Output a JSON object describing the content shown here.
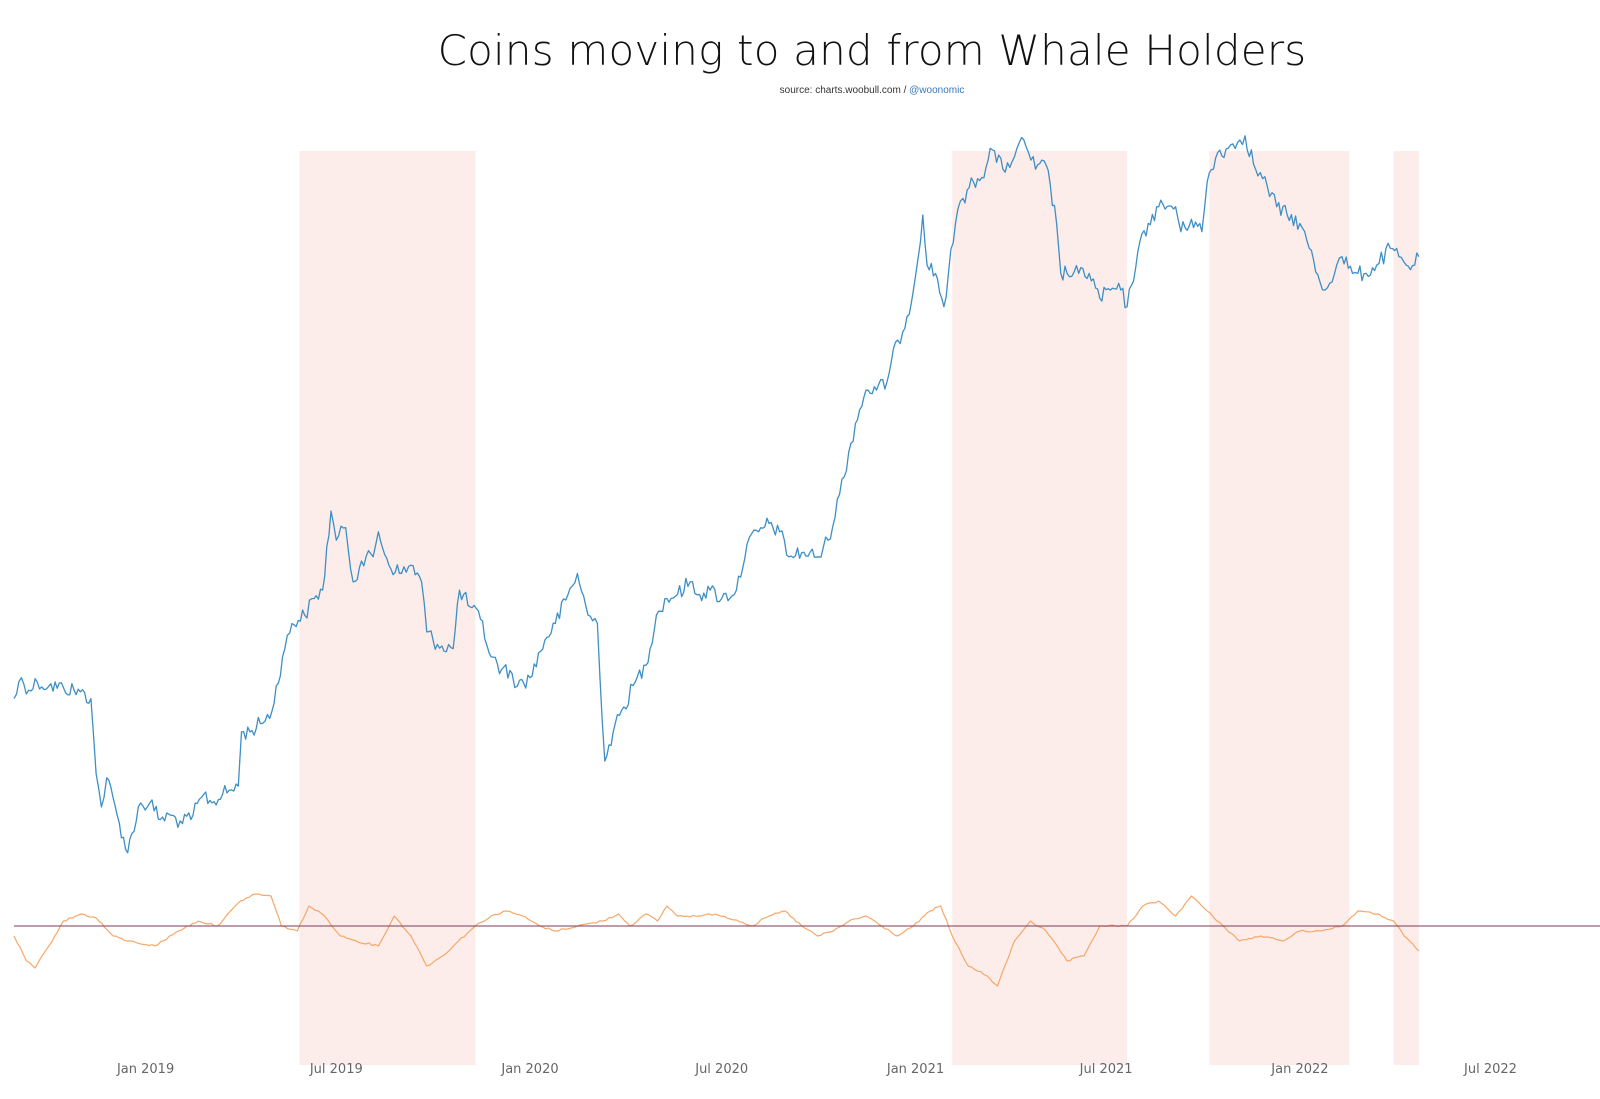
{
  "chart_data": {
    "type": "line",
    "title": "Coins moving to and from Whale Holders",
    "subtitle": {
      "source_prefix": "source: charts.woobull.com /",
      "handle": "@woonomic"
    },
    "x_range": [
      "2018-08-29",
      "2022-10-13"
    ],
    "x_ticks": [
      {
        "date": "2019-01-01",
        "label": "Jan 2019"
      },
      {
        "date": "2019-07-01",
        "label": "Jul 2019"
      },
      {
        "date": "2020-01-01",
        "label": "Jan 2020"
      },
      {
        "date": "2020-07-01",
        "label": "Jul 2020"
      },
      {
        "date": "2021-01-01",
        "label": "Jan 2021"
      },
      {
        "date": "2021-07-01",
        "label": "Jul 2021"
      },
      {
        "date": "2022-01-01",
        "label": "Jan 2022"
      },
      {
        "date": "2022-07-01",
        "label": "Jul 2022"
      }
    ],
    "grid": false,
    "shaded_periods": [
      {
        "start": "2019-05-27",
        "end": "2019-11-10"
      },
      {
        "start": "2021-02-05",
        "end": "2021-07-21"
      },
      {
        "start": "2021-10-07",
        "end": "2022-02-17"
      },
      {
        "start": "2022-03-31",
        "end": "2022-04-24"
      }
    ],
    "shade_color": "#fcecea",
    "series": [
      {
        "role": "price",
        "color": "#3d8fc4",
        "y_range": [
          0.08,
          1.0
        ],
        "points": [
          [
            "2018-08-29",
            0.33
          ],
          [
            "2018-09-05",
            0.355
          ],
          [
            "2018-09-12",
            0.34
          ],
          [
            "2018-09-20",
            0.35
          ],
          [
            "2018-10-01",
            0.345
          ],
          [
            "2018-10-15",
            0.343
          ],
          [
            "2018-10-31",
            0.338
          ],
          [
            "2018-11-10",
            0.33
          ],
          [
            "2018-11-15",
            0.24
          ],
          [
            "2018-11-20",
            0.2
          ],
          [
            "2018-11-25",
            0.235
          ],
          [
            "2018-12-05",
            0.19
          ],
          [
            "2018-12-15",
            0.145
          ],
          [
            "2018-12-25",
            0.2
          ],
          [
            "2019-01-05",
            0.205
          ],
          [
            "2019-01-15",
            0.185
          ],
          [
            "2019-01-25",
            0.19
          ],
          [
            "2019-02-05",
            0.18
          ],
          [
            "2019-02-15",
            0.19
          ],
          [
            "2019-02-25",
            0.215
          ],
          [
            "2019-03-05",
            0.205
          ],
          [
            "2019-03-15",
            0.215
          ],
          [
            "2019-03-30",
            0.225
          ],
          [
            "2019-04-02",
            0.29
          ],
          [
            "2019-04-10",
            0.29
          ],
          [
            "2019-04-20",
            0.3
          ],
          [
            "2019-05-01",
            0.315
          ],
          [
            "2019-05-11",
            0.38
          ],
          [
            "2019-05-20",
            0.42
          ],
          [
            "2019-06-01",
            0.43
          ],
          [
            "2019-06-10",
            0.45
          ],
          [
            "2019-06-18",
            0.46
          ],
          [
            "2019-06-26",
            0.555
          ],
          [
            "2019-07-01",
            0.52
          ],
          [
            "2019-07-10",
            0.535
          ],
          [
            "2019-07-17",
            0.47
          ],
          [
            "2019-07-25",
            0.495
          ],
          [
            "2019-08-05",
            0.5
          ],
          [
            "2019-08-10",
            0.53
          ],
          [
            "2019-08-20",
            0.49
          ],
          [
            "2019-09-01",
            0.48
          ],
          [
            "2019-09-10",
            0.49
          ],
          [
            "2019-09-20",
            0.47
          ],
          [
            "2019-09-25",
            0.41
          ],
          [
            "2019-10-05",
            0.395
          ],
          [
            "2019-10-20",
            0.39
          ],
          [
            "2019-10-26",
            0.46
          ],
          [
            "2019-11-05",
            0.44
          ],
          [
            "2019-11-15",
            0.425
          ],
          [
            "2019-11-25",
            0.38
          ],
          [
            "2019-12-05",
            0.365
          ],
          [
            "2019-12-15",
            0.36
          ],
          [
            "2019-12-20",
            0.345
          ],
          [
            "2020-01-01",
            0.355
          ],
          [
            "2020-01-15",
            0.4
          ],
          [
            "2020-01-25",
            0.42
          ],
          [
            "2020-02-10",
            0.465
          ],
          [
            "2020-02-15",
            0.48
          ],
          [
            "2020-02-25",
            0.43
          ],
          [
            "2020-03-05",
            0.42
          ],
          [
            "2020-03-12",
            0.255
          ],
          [
            "2020-03-20",
            0.29
          ],
          [
            "2020-03-30",
            0.32
          ],
          [
            "2020-04-10",
            0.35
          ],
          [
            "2020-04-20",
            0.37
          ],
          [
            "2020-04-30",
            0.43
          ],
          [
            "2020-05-10",
            0.45
          ],
          [
            "2020-05-20",
            0.455
          ],
          [
            "2020-06-01",
            0.47
          ],
          [
            "2020-06-10",
            0.455
          ],
          [
            "2020-06-20",
            0.46
          ],
          [
            "2020-07-01",
            0.45
          ],
          [
            "2020-07-15",
            0.46
          ],
          [
            "2020-07-25",
            0.515
          ],
          [
            "2020-08-05",
            0.53
          ],
          [
            "2020-08-15",
            0.54
          ],
          [
            "2020-08-25",
            0.53
          ],
          [
            "2020-09-03",
            0.5
          ],
          [
            "2020-09-15",
            0.505
          ],
          [
            "2020-10-01",
            0.5
          ],
          [
            "2020-10-10",
            0.52
          ],
          [
            "2020-10-21",
            0.575
          ],
          [
            "2020-11-05",
            0.66
          ],
          [
            "2020-11-15",
            0.7
          ],
          [
            "2020-11-25",
            0.7
          ],
          [
            "2020-12-05",
            0.71
          ],
          [
            "2020-12-15",
            0.76
          ],
          [
            "2020-12-20",
            0.77
          ],
          [
            "2020-12-30",
            0.82
          ],
          [
            "2021-01-08",
            0.91
          ],
          [
            "2021-01-12",
            0.85
          ],
          [
            "2021-01-20",
            0.84
          ],
          [
            "2021-01-28",
            0.8
          ],
          [
            "2021-02-08",
            0.9
          ],
          [
            "2021-02-15",
            0.93
          ],
          [
            "2021-02-25",
            0.95
          ],
          [
            "2021-03-05",
            0.955
          ],
          [
            "2021-03-13",
            0.99
          ],
          [
            "2021-03-25",
            0.965
          ],
          [
            "2021-04-05",
            0.98
          ],
          [
            "2021-04-14",
            1.0
          ],
          [
            "2021-04-25",
            0.965
          ],
          [
            "2021-05-05",
            0.97
          ],
          [
            "2021-05-15",
            0.9
          ],
          [
            "2021-05-19",
            0.84
          ],
          [
            "2021-05-25",
            0.84
          ],
          [
            "2021-06-05",
            0.84
          ],
          [
            "2021-06-15",
            0.84
          ],
          [
            "2021-06-25",
            0.81
          ],
          [
            "2021-07-05",
            0.82
          ],
          [
            "2021-07-15",
            0.82
          ],
          [
            "2021-07-21",
            0.8
          ],
          [
            "2021-07-31",
            0.865
          ],
          [
            "2021-08-10",
            0.9
          ],
          [
            "2021-08-20",
            0.92
          ],
          [
            "2021-09-05",
            0.92
          ],
          [
            "2021-09-10",
            0.89
          ],
          [
            "2021-09-20",
            0.905
          ],
          [
            "2021-09-30",
            0.89
          ],
          [
            "2021-10-05",
            0.95
          ],
          [
            "2021-10-15",
            0.985
          ],
          [
            "2021-10-25",
            0.99
          ],
          [
            "2021-11-05",
            1.0
          ],
          [
            "2021-11-10",
            1.005
          ],
          [
            "2021-11-20",
            0.965
          ],
          [
            "2021-12-01",
            0.945
          ],
          [
            "2021-12-10",
            0.92
          ],
          [
            "2021-12-20",
            0.91
          ],
          [
            "2022-01-01",
            0.9
          ],
          [
            "2022-01-10",
            0.87
          ],
          [
            "2022-01-20",
            0.83
          ],
          [
            "2022-01-25",
            0.82
          ],
          [
            "2022-02-05",
            0.85
          ],
          [
            "2022-02-10",
            0.86
          ],
          [
            "2022-02-20",
            0.84
          ],
          [
            "2022-02-25",
            0.84
          ],
          [
            "2022-03-05",
            0.84
          ],
          [
            "2022-03-15",
            0.85
          ],
          [
            "2022-03-28",
            0.87
          ],
          [
            "2022-04-05",
            0.86
          ],
          [
            "2022-04-12",
            0.85
          ],
          [
            "2022-04-20",
            0.85
          ],
          [
            "2022-04-24",
            0.86
          ]
        ]
      },
      {
        "role": "whale_flow",
        "color": "#f5a868",
        "y_range": [
          -1.0,
          1.0
        ],
        "points": [
          [
            "2018-08-29",
            -0.1
          ],
          [
            "2018-09-10",
            -0.35
          ],
          [
            "2018-09-18",
            -0.42
          ],
          [
            "2018-10-01",
            -0.2
          ],
          [
            "2018-10-15",
            0.05
          ],
          [
            "2018-11-01",
            0.12
          ],
          [
            "2018-11-15",
            0.08
          ],
          [
            "2018-12-01",
            -0.1
          ],
          [
            "2018-12-15",
            -0.15
          ],
          [
            "2019-01-10",
            -0.2
          ],
          [
            "2019-02-01",
            -0.05
          ],
          [
            "2019-02-20",
            0.05
          ],
          [
            "2019-03-10",
            0.0
          ],
          [
            "2019-04-01",
            0.25
          ],
          [
            "2019-04-15",
            0.32
          ],
          [
            "2019-04-30",
            0.3
          ],
          [
            "2019-05-10",
            0.0
          ],
          [
            "2019-05-25",
            -0.05
          ],
          [
            "2019-06-05",
            0.2
          ],
          [
            "2019-06-20",
            0.1
          ],
          [
            "2019-07-05",
            -0.1
          ],
          [
            "2019-07-20",
            -0.15
          ],
          [
            "2019-08-10",
            -0.2
          ],
          [
            "2019-08-25",
            0.1
          ],
          [
            "2019-09-10",
            -0.1
          ],
          [
            "2019-09-25",
            -0.4
          ],
          [
            "2019-10-10",
            -0.3
          ],
          [
            "2019-10-25",
            -0.15
          ],
          [
            "2019-11-10",
            0.0
          ],
          [
            "2019-11-25",
            0.1
          ],
          [
            "2019-12-10",
            0.15
          ],
          [
            "2019-12-25",
            0.1
          ],
          [
            "2020-01-10",
            0.0
          ],
          [
            "2020-01-25",
            -0.05
          ],
          [
            "2020-02-15",
            0.0
          ],
          [
            "2020-03-10",
            0.05
          ],
          [
            "2020-03-25",
            0.12
          ],
          [
            "2020-04-05",
            0.0
          ],
          [
            "2020-04-20",
            0.12
          ],
          [
            "2020-05-01",
            0.05
          ],
          [
            "2020-05-10",
            0.2
          ],
          [
            "2020-05-20",
            0.1
          ],
          [
            "2020-06-10",
            0.1
          ],
          [
            "2020-06-25",
            0.12
          ],
          [
            "2020-07-15",
            0.06
          ],
          [
            "2020-07-30",
            0.0
          ],
          [
            "2020-08-15",
            0.1
          ],
          [
            "2020-08-30",
            0.15
          ],
          [
            "2020-09-15",
            0.0
          ],
          [
            "2020-09-30",
            -0.1
          ],
          [
            "2020-10-15",
            -0.05
          ],
          [
            "2020-10-30",
            0.05
          ],
          [
            "2020-11-15",
            0.1
          ],
          [
            "2020-11-30",
            0.0
          ],
          [
            "2020-12-15",
            -0.1
          ],
          [
            "2020-12-30",
            0.0
          ],
          [
            "2021-01-15",
            0.15
          ],
          [
            "2021-01-25",
            0.2
          ],
          [
            "2021-02-05",
            -0.1
          ],
          [
            "2021-02-20",
            -0.4
          ],
          [
            "2021-03-10",
            -0.5
          ],
          [
            "2021-03-20",
            -0.6
          ],
          [
            "2021-04-05",
            -0.15
          ],
          [
            "2021-04-20",
            0.05
          ],
          [
            "2021-05-05",
            -0.05
          ],
          [
            "2021-05-25",
            -0.35
          ],
          [
            "2021-06-10",
            -0.3
          ],
          [
            "2021-06-25",
            0.0
          ],
          [
            "2021-07-10",
            0.0
          ],
          [
            "2021-07-21",
            0.0
          ],
          [
            "2021-08-05",
            0.2
          ],
          [
            "2021-08-20",
            0.25
          ],
          [
            "2021-09-05",
            0.1
          ],
          [
            "2021-09-20",
            0.3
          ],
          [
            "2021-10-05",
            0.15
          ],
          [
            "2021-10-20",
            0.0
          ],
          [
            "2021-11-05",
            -0.15
          ],
          [
            "2021-11-25",
            -0.1
          ],
          [
            "2021-12-15",
            -0.15
          ],
          [
            "2022-01-01",
            -0.05
          ],
          [
            "2022-01-20",
            -0.05
          ],
          [
            "2022-02-10",
            0.0
          ],
          [
            "2022-02-25",
            0.15
          ],
          [
            "2022-03-15",
            0.12
          ],
          [
            "2022-03-31",
            0.05
          ],
          [
            "2022-04-10",
            -0.1
          ],
          [
            "2022-04-24",
            -0.25
          ]
        ]
      }
    ],
    "reference_line": {
      "y": 0,
      "color": "#7b3a5c"
    }
  }
}
